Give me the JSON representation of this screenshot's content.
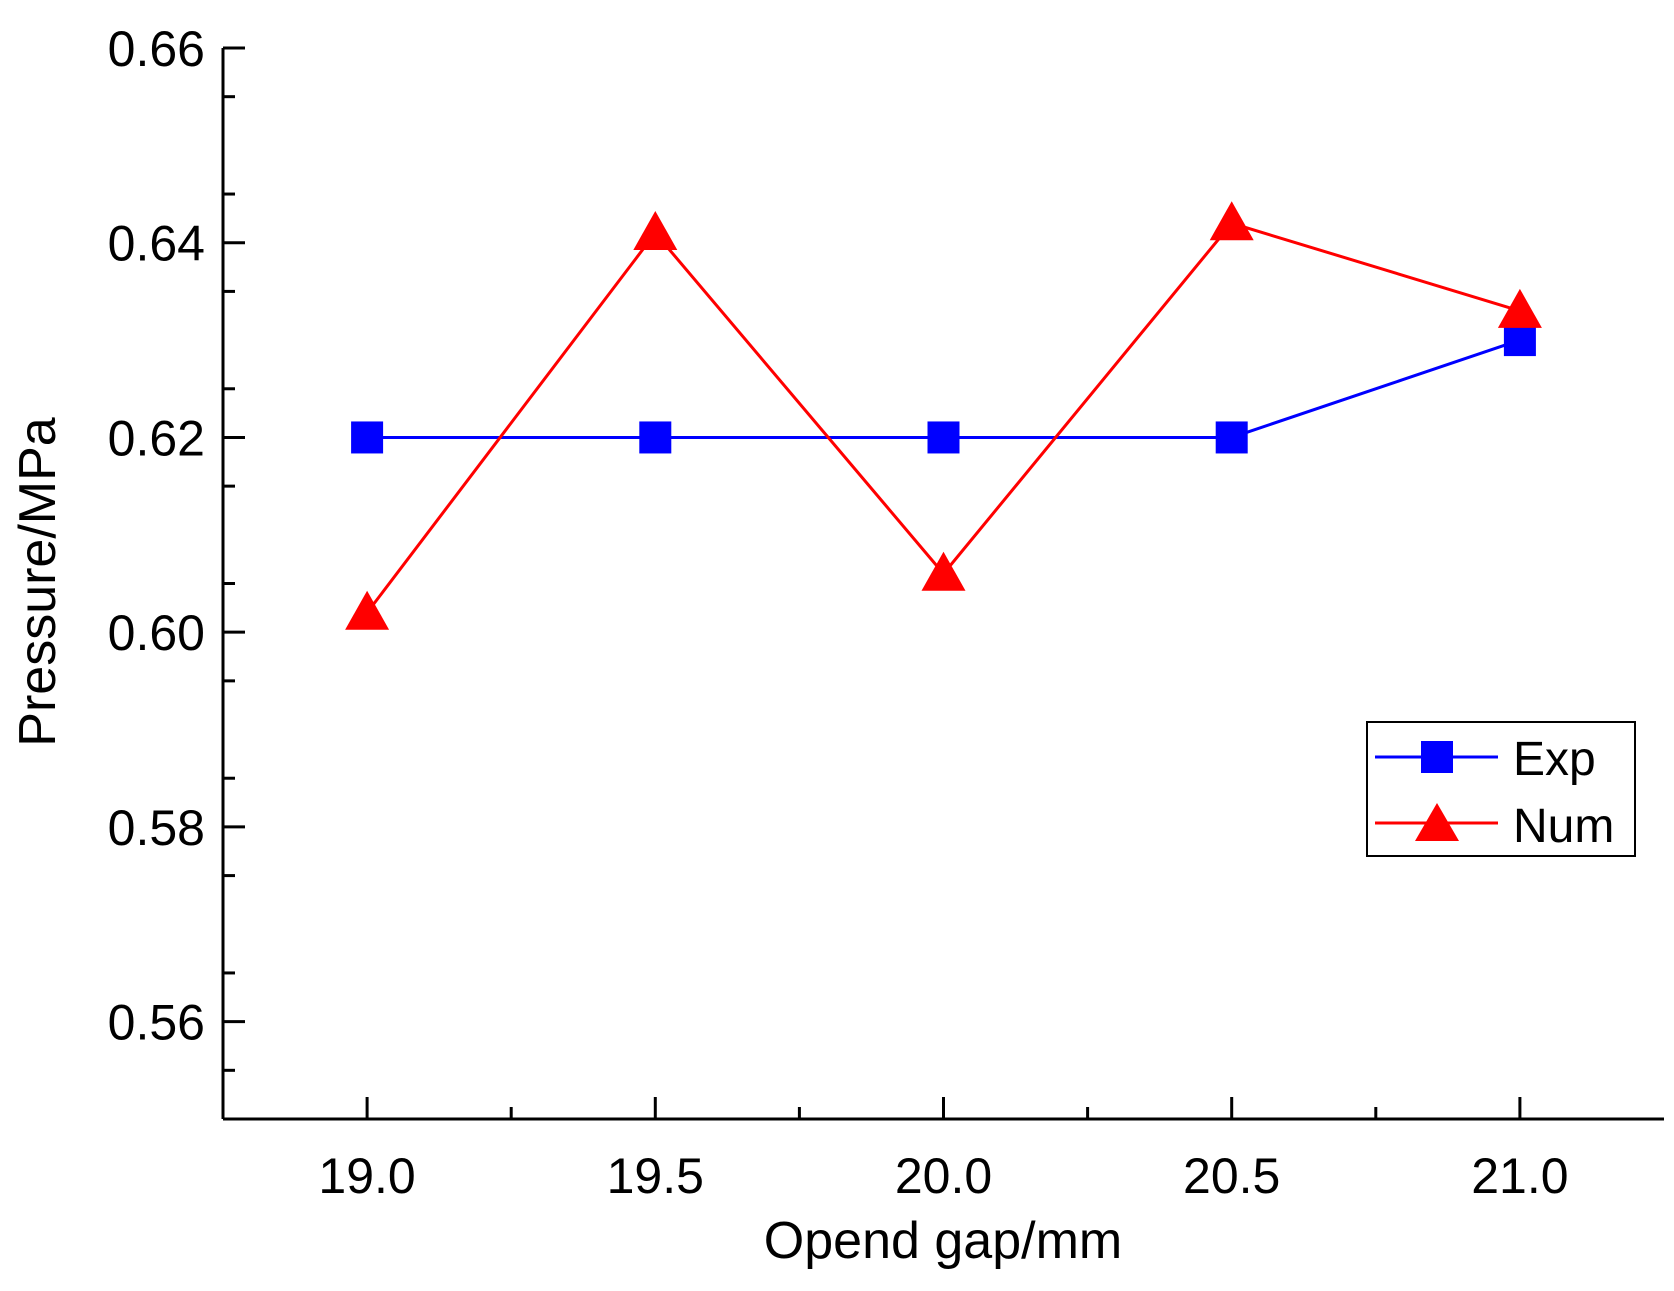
{
  "chart_data": {
    "type": "line",
    "title": "",
    "xlabel": "Opend gap/mm",
    "ylabel": "Pressure/MPa",
    "xlim": [
      18.75,
      21.25
    ],
    "ylim": [
      0.55,
      0.66
    ],
    "x": [
      19.0,
      19.5,
      20.0,
      20.5,
      21.0
    ],
    "x_tick_labels": [
      "19.0",
      "19.5",
      "20.0",
      "20.5",
      "21.0"
    ],
    "y_ticks": [
      0.56,
      0.58,
      0.6,
      0.62,
      0.64,
      0.66
    ],
    "y_tick_labels": [
      "0.56",
      "0.58",
      "0.60",
      "0.62",
      "0.64",
      "0.66"
    ],
    "grid": false,
    "legend_position": "right",
    "series": [
      {
        "name": "Exp",
        "color": "#0000ff",
        "marker": "square",
        "values": [
          0.62,
          0.62,
          0.62,
          0.62,
          0.63
        ]
      },
      {
        "name": "Num",
        "color": "#ff0000",
        "marker": "triangle",
        "values": [
          0.602,
          0.641,
          0.606,
          0.642,
          0.633
        ]
      }
    ]
  }
}
